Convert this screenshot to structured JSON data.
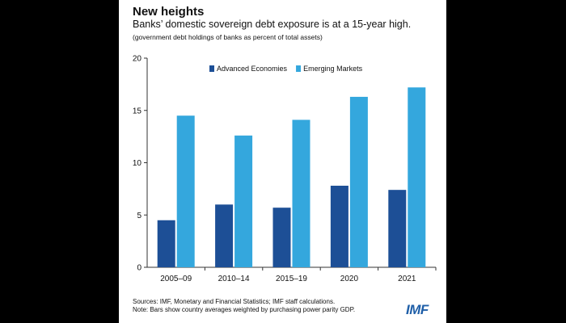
{
  "header": {
    "title": "New heights",
    "subtitle": "Banks’ domestic sovereign debt exposure is at a 15-year high.",
    "units_note": "(government debt holdings of banks as percent of total assets)"
  },
  "footer": {
    "sources": "Sources: IMF, Monetary and Financial Statistics; IMF staff calculations.",
    "note": "Note: Bars show country averages weighted by purchasing power parity GDP.",
    "logo": "IMF"
  },
  "colors": {
    "advanced": "#1d4f96",
    "emerging": "#34a7dd",
    "axis": "#333333"
  },
  "chart_data": {
    "type": "bar",
    "categories": [
      "2005–09",
      "2010–14",
      "2015–19",
      "2020",
      "2021"
    ],
    "series": [
      {
        "name": "Advanced Economies",
        "values": [
          4.5,
          6.0,
          5.7,
          7.8,
          7.4
        ]
      },
      {
        "name": "Emerging Markets",
        "values": [
          14.5,
          12.6,
          14.1,
          16.3,
          17.2
        ]
      }
    ],
    "yticks": [
      0,
      5,
      10,
      15,
      20
    ],
    "ylim": [
      0,
      20
    ],
    "legend": "top-center"
  }
}
